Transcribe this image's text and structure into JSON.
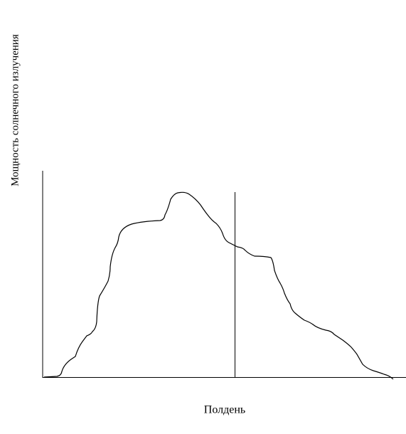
{
  "axis_label": "Мощность солнечного излучения",
  "noon_label": "Полдень"
}
